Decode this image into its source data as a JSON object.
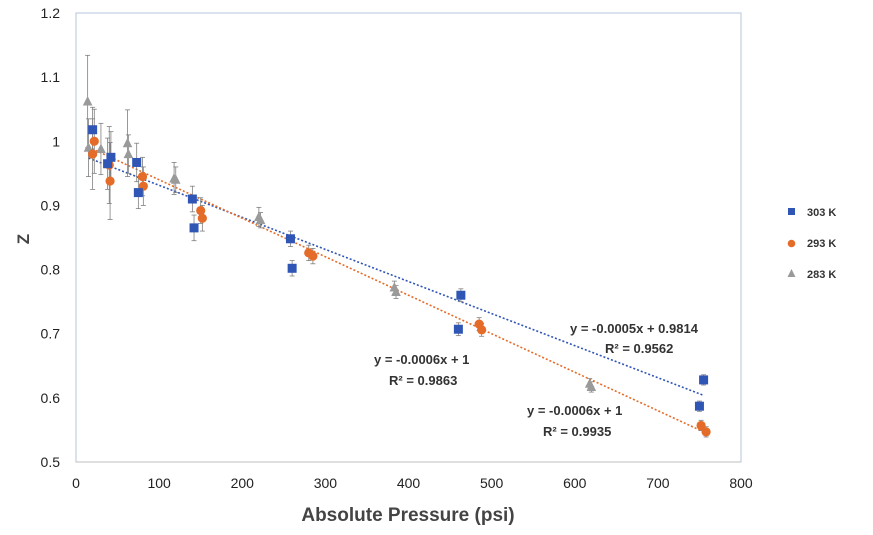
{
  "chart_data": {
    "type": "scatter",
    "xlabel": "Absolute Pressure (psi)",
    "ylabel": "Z",
    "xlim": [
      0,
      800
    ],
    "ylim": [
      0.5,
      1.2
    ],
    "x_ticks": [
      0,
      100,
      200,
      300,
      400,
      500,
      600,
      700,
      800
    ],
    "y_ticks": [
      0.5,
      0.6,
      0.7,
      0.8,
      0.9,
      1,
      1.1,
      1.2
    ],
    "y_tick_labels": [
      "0.5",
      "0.6",
      "0.7",
      "0.8",
      "0.9",
      "1",
      "1.1",
      "1.2"
    ],
    "grid": false,
    "legend": "right",
    "series": [
      {
        "name": "303 K",
        "marker": "square",
        "color": "#2f55b5",
        "points": [
          {
            "x": 20,
            "y": 1.018,
            "err": 0.035
          },
          {
            "x": 38,
            "y": 0.965,
            "err": 0.04
          },
          {
            "x": 42,
            "y": 0.975,
            "err": 0.04
          },
          {
            "x": 73,
            "y": 0.967,
            "err": 0.03
          },
          {
            "x": 75,
            "y": 0.92,
            "err": 0.025
          },
          {
            "x": 140,
            "y": 0.91,
            "err": 0.02
          },
          {
            "x": 142,
            "y": 0.865,
            "err": 0.02
          },
          {
            "x": 258,
            "y": 0.848,
            "err": 0.012
          },
          {
            "x": 260,
            "y": 0.802,
            "err": 0.012
          },
          {
            "x": 460,
            "y": 0.707,
            "err": 0.01
          },
          {
            "x": 463,
            "y": 0.76,
            "err": 0.01
          },
          {
            "x": 750,
            "y": 0.587,
            "err": 0.008
          },
          {
            "x": 755,
            "y": 0.628,
            "err": 0.008
          }
        ],
        "trend": {
          "slope": -0.0005,
          "intercept": 0.9814,
          "x_start": 15,
          "x_end": 755,
          "color": "#2f55b5"
        },
        "equation": "y = -0.0005x + 0.9814",
        "r2": "R² = 0.9562"
      },
      {
        "name": "293 K",
        "marker": "circle",
        "color": "#e46c28",
        "points": [
          {
            "x": 20,
            "y": 0.98,
            "err": 0.055
          },
          {
            "x": 22,
            "y": 1.0,
            "err": 0.05
          },
          {
            "x": 40,
            "y": 0.963,
            "err": 0.06
          },
          {
            "x": 41,
            "y": 0.938,
            "err": 0.06
          },
          {
            "x": 80,
            "y": 0.945,
            "err": 0.03
          },
          {
            "x": 81,
            "y": 0.93,
            "err": 0.03
          },
          {
            "x": 150,
            "y": 0.892,
            "err": 0.02
          },
          {
            "x": 152,
            "y": 0.88,
            "err": 0.02
          },
          {
            "x": 280,
            "y": 0.826,
            "err": 0.012
          },
          {
            "x": 285,
            "y": 0.821,
            "err": 0.012
          },
          {
            "x": 485,
            "y": 0.715,
            "err": 0.01
          },
          {
            "x": 488,
            "y": 0.706,
            "err": 0.01
          },
          {
            "x": 752,
            "y": 0.557,
            "err": 0.008
          },
          {
            "x": 758,
            "y": 0.547,
            "err": 0.008
          }
        ],
        "trend": {
          "slope": -0.0006,
          "intercept": 1,
          "x_start": 15,
          "x_end": 760,
          "color": "#e46c28"
        },
        "equation": "y = -0.0006x + 1",
        "r2": "R² = 0.9935"
      },
      {
        "name": "283 K",
        "marker": "triangle",
        "color": "#9a9a9a",
        "points": [
          {
            "x": 14,
            "y": 1.062,
            "err": 0.072
          },
          {
            "x": 15,
            "y": 0.99,
            "err": 0.045
          },
          {
            "x": 30,
            "y": 0.988,
            "err": 0.04
          },
          {
            "x": 62,
            "y": 0.997,
            "err": 0.052
          },
          {
            "x": 63,
            "y": 0.98,
            "err": 0.03
          },
          {
            "x": 118,
            "y": 0.942,
            "err": 0.025
          },
          {
            "x": 120,
            "y": 0.94,
            "err": 0.02
          },
          {
            "x": 220,
            "y": 0.882,
            "err": 0.015
          },
          {
            "x": 222,
            "y": 0.877,
            "err": 0.012
          },
          {
            "x": 383,
            "y": 0.772,
            "err": 0.01
          },
          {
            "x": 385,
            "y": 0.765,
            "err": 0.01
          },
          {
            "x": 618,
            "y": 0.622,
            "err": 0.008
          },
          {
            "x": 620,
            "y": 0.617,
            "err": 0.008
          }
        ],
        "trend": {
          "slope": -0.0006,
          "intercept": 1,
          "x_start": 15,
          "x_end": 755,
          "color": "#e46c28"
        },
        "equation": "y = -0.0006x + 1",
        "r2": "R² = 0.9863"
      }
    ]
  }
}
